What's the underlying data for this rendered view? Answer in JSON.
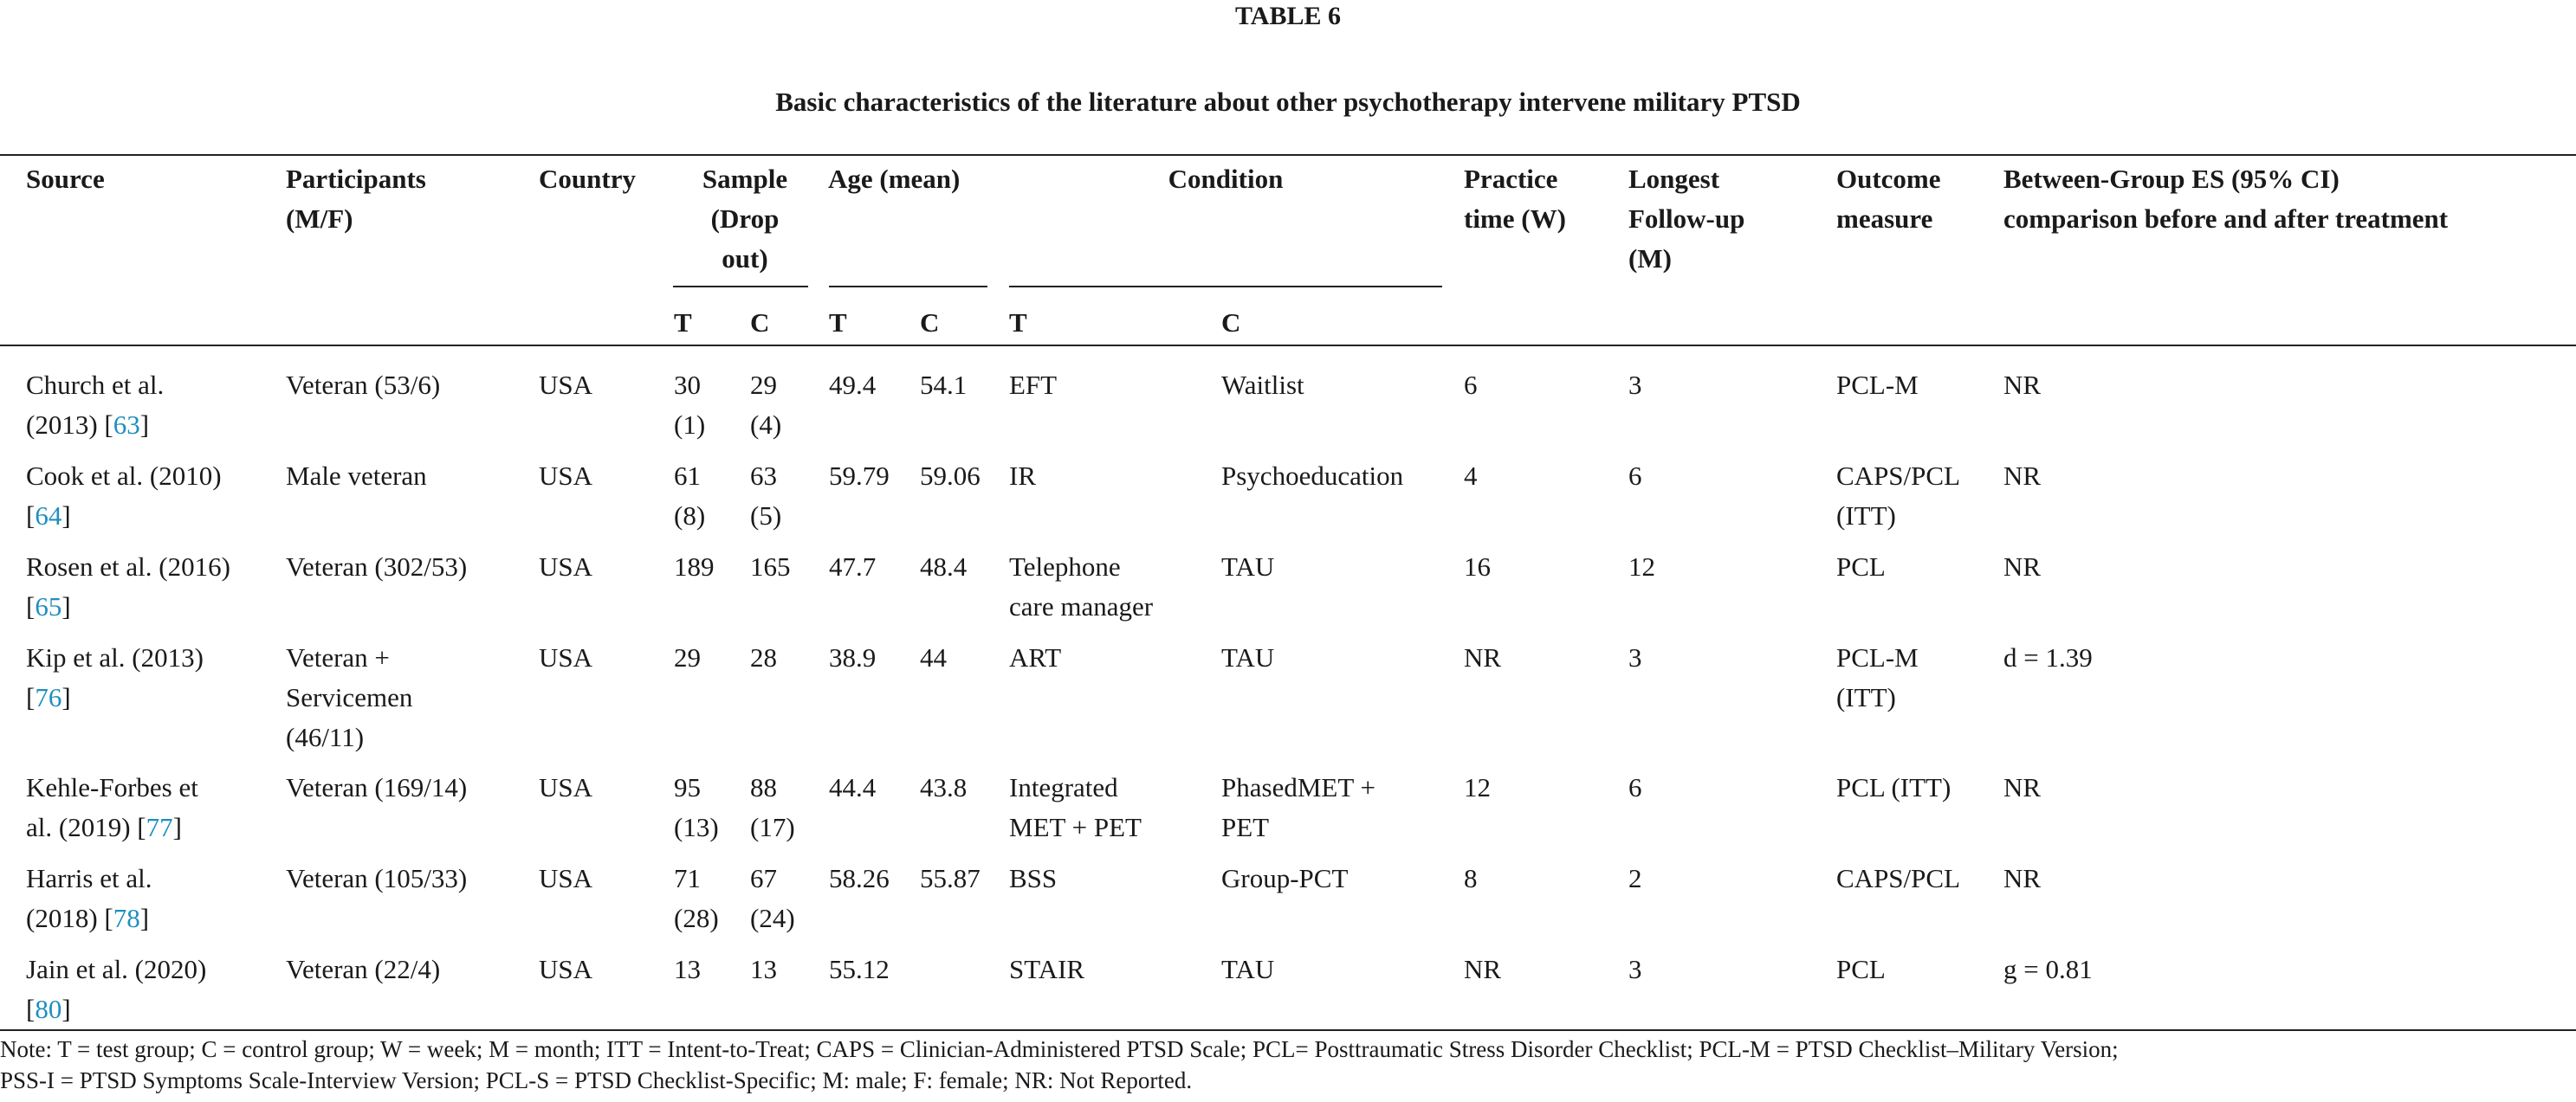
{
  "table": {
    "label": "TABLE 6",
    "caption": "Basic characteristics of the literature about other psychotherapy intervene military PTSD",
    "headers": {
      "source": "Source",
      "participants": [
        "Participants",
        "(M/F)"
      ],
      "country": "Country",
      "sample": [
        "Sample",
        "(Drop",
        "out)"
      ],
      "age": "Age (mean)",
      "condition": "Condition",
      "practice": [
        "Practice",
        "time (W)"
      ],
      "followup": [
        "Longest",
        "Follow-up",
        "(M)"
      ],
      "outcome": [
        "Outcome",
        "measure"
      ],
      "es": [
        "Between-Group ES (95% CI)",
        "comparison before and after treatment"
      ],
      "sub": {
        "sample_t": "T",
        "sample_c": "C",
        "age_t": "T",
        "age_c": "C",
        "cond_t": "T",
        "cond_c": "C"
      }
    },
    "rows": [
      {
        "source": [
          "Church et al.",
          "(2013) ["
        ],
        "ref": "63",
        "participants": [
          "Veteran (53/6)"
        ],
        "country": "USA",
        "sample_t": [
          "30",
          "(1)"
        ],
        "sample_c": [
          "29",
          "(4)"
        ],
        "age_t": "49.4",
        "age_c": "54.1",
        "cond_t": [
          "EFT"
        ],
        "cond_c": [
          "Waitlist"
        ],
        "practice": "6",
        "followup": "3",
        "outcome": [
          "PCL-M"
        ],
        "es": "NR"
      },
      {
        "source": [
          "Cook et al. (2010)",
          "["
        ],
        "ref": "64",
        "participants": [
          "Male veteran"
        ],
        "country": "USA",
        "sample_t": [
          "61",
          "(8)"
        ],
        "sample_c": [
          "63",
          "(5)"
        ],
        "age_t": "59.79",
        "age_c": "59.06",
        "cond_t": [
          "IR"
        ],
        "cond_c": [
          "Psychoeducation"
        ],
        "practice": "4",
        "followup": "6",
        "outcome": [
          "CAPS/PCL",
          "(ITT)"
        ],
        "es": "NR"
      },
      {
        "source": [
          "Rosen et al. (2016)",
          "["
        ],
        "ref": "65",
        "participants": [
          "Veteran (302/53)"
        ],
        "country": "USA",
        "sample_t": [
          "189"
        ],
        "sample_c": [
          "165"
        ],
        "age_t": "47.7",
        "age_c": "48.4",
        "cond_t": [
          "Telephone",
          "care manager"
        ],
        "cond_c": [
          "TAU"
        ],
        "practice": "16",
        "followup": "12",
        "outcome": [
          "PCL"
        ],
        "es": "NR"
      },
      {
        "source": [
          "Kip et al. (2013)",
          "["
        ],
        "ref": "76",
        "participants": [
          "Veteran +",
          "Servicemen",
          "(46/11)"
        ],
        "country": "USA",
        "sample_t": [
          "29"
        ],
        "sample_c": [
          "28"
        ],
        "age_t": "38.9",
        "age_c": "44",
        "cond_t": [
          "ART"
        ],
        "cond_c": [
          "TAU"
        ],
        "practice": "NR",
        "followup": "3",
        "outcome": [
          "PCL-M",
          "(ITT)"
        ],
        "es": "d = 1.39"
      },
      {
        "source": [
          "Kehle-Forbes et",
          "al. (2019) ["
        ],
        "ref": "77",
        "participants": [
          "Veteran (169/14)"
        ],
        "country": "USA",
        "sample_t": [
          "95",
          "(13)"
        ],
        "sample_c": [
          "88",
          "(17)"
        ],
        "age_t": "44.4",
        "age_c": "43.8",
        "cond_t": [
          "Integrated",
          "MET + PET"
        ],
        "cond_c": [
          "PhasedMET +",
          "PET"
        ],
        "practice": "12",
        "followup": "6",
        "outcome": [
          "PCL (ITT)"
        ],
        "es": "NR"
      },
      {
        "source": [
          "Harris et al.",
          "(2018) ["
        ],
        "ref": "78",
        "participants": [
          "Veteran (105/33)"
        ],
        "country": "USA",
        "sample_t": [
          "71",
          "(28)"
        ],
        "sample_c": [
          "67",
          "(24)"
        ],
        "age_t": "58.26",
        "age_c": "55.87",
        "cond_t": [
          "BSS"
        ],
        "cond_c": [
          "Group-PCT"
        ],
        "practice": "8",
        "followup": "2",
        "outcome": [
          "CAPS/PCL"
        ],
        "es": "NR"
      },
      {
        "source": [
          "Jain et al. (2020)",
          "["
        ],
        "ref": "80",
        "participants": [
          "Veteran (22/4)"
        ],
        "country": "USA",
        "sample_t": [
          "13"
        ],
        "sample_c": [
          "13"
        ],
        "age_t": "55.12",
        "age_c": "",
        "cond_t": [
          "STAIR"
        ],
        "cond_c": [
          "TAU"
        ],
        "practice": "NR",
        "followup": "3",
        "outcome": [
          "PCL"
        ],
        "es": "g = 0.81"
      }
    ],
    "ref_close": "]",
    "note": [
      "Note: T = test group; C = control group; W = week; M = month; ITT = Intent-to-Treat; CAPS = Clinician-Administered PTSD Scale; PCL= Posttraumatic Stress Disorder Checklist; PCL-M = PTSD Checklist–Military Version;",
      "PSS-I = PTSD Symptoms Scale-Interview Version; PCL-S = PTSD Checklist-Specific; M: male; F: female; NR: Not Reported."
    ]
  }
}
